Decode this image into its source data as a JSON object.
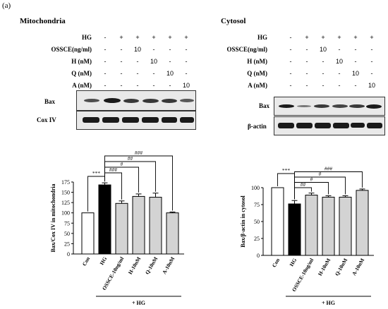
{
  "panel_label": "(a)",
  "left": {
    "title": "Mitochondria",
    "conditions": [
      {
        "label": "HG",
        "values": [
          "-",
          "+",
          "+",
          "+",
          "+",
          "+"
        ]
      },
      {
        "label": "OSSCE(ng/ml)",
        "values": [
          "-",
          "-",
          "10",
          "-",
          "-",
          "-"
        ]
      },
      {
        "label": "H (nM)",
        "values": [
          "-",
          "-",
          "-",
          "10",
          "-",
          "-"
        ]
      },
      {
        "label": "Q (nM)",
        "values": [
          "-",
          "-",
          "-",
          "-",
          "10",
          "-"
        ]
      },
      {
        "label": "A (nM)",
        "values": [
          "-",
          "-",
          "-",
          "-",
          "-",
          "10"
        ]
      }
    ],
    "blot_labels": [
      "Bax",
      "Cox IV"
    ]
  },
  "right": {
    "title": "Cytosol",
    "conditions": [
      {
        "label": "HG",
        "values": [
          "-",
          "+",
          "+",
          "+",
          "+",
          "+"
        ]
      },
      {
        "label": "OSSCE(ng/ml)",
        "values": [
          "-",
          "-",
          "10",
          "-",
          "-",
          "-"
        ]
      },
      {
        "label": "H (nM)",
        "values": [
          "-",
          "-",
          "-",
          "10",
          "-",
          "-"
        ]
      },
      {
        "label": "Q (nM)",
        "values": [
          "-",
          "-",
          "-",
          "-",
          "10",
          "-"
        ]
      },
      {
        "label": "A (nM)",
        "values": [
          "-",
          "-",
          "-",
          "-",
          "-",
          "10"
        ]
      }
    ],
    "blot_labels": [
      "Bax",
      "β-actin"
    ]
  },
  "chart_data": [
    {
      "type": "bar",
      "categories": [
        "Con",
        "HG",
        "OSSCE-10ng/ml",
        "H-10nM",
        "Q-10nM",
        "A-10nM"
      ],
      "values": [
        100,
        168,
        123,
        140,
        138,
        100
      ],
      "errors": [
        0,
        5,
        6,
        6,
        10,
        2
      ],
      "bar_colors": [
        "#ffffff",
        "#000000",
        "#d3d3d3",
        "#d3d3d3",
        "#d3d3d3",
        "#d3d3d3"
      ],
      "ylabel": "Bax/Cox IV in mitochondria",
      "ylim": [
        0,
        175
      ],
      "yticks": [
        "0",
        "25",
        "50",
        "75",
        "100",
        "125",
        "150",
        "175"
      ],
      "group_label": "+ HG",
      "significance": [
        {
          "from": 0,
          "to": 1,
          "label": "***"
        },
        {
          "from": 1,
          "to": 2,
          "label": "###"
        },
        {
          "from": 1,
          "to": 3,
          "label": "#"
        },
        {
          "from": 1,
          "to": 4,
          "label": "##"
        },
        {
          "from": 1,
          "to": 5,
          "label": "###"
        }
      ]
    },
    {
      "type": "bar",
      "categories": [
        "Con",
        "HG",
        "OSSCE-10ng/ml",
        "H-10nM",
        "Q-10nM",
        "A-10nM"
      ],
      "values": [
        100,
        76,
        89,
        86,
        86,
        96
      ],
      "errors": [
        0,
        5,
        3,
        2,
        2,
        2
      ],
      "bar_colors": [
        "#ffffff",
        "#000000",
        "#d3d3d3",
        "#d3d3d3",
        "#d3d3d3",
        "#d3d3d3"
      ],
      "ylabel": "Bax/β-actin in cytosol",
      "ylim": [
        0,
        100
      ],
      "yticks": [
        "0",
        "25",
        "50",
        "75",
        "100"
      ],
      "group_label": "+ HG",
      "significance": [
        {
          "from": 0,
          "to": 1,
          "label": "***"
        },
        {
          "from": 1,
          "to": 2,
          "label": "##"
        },
        {
          "from": 1,
          "to": 3,
          "label": "#"
        },
        {
          "from": 1,
          "to": 4,
          "label": "#"
        },
        {
          "from": 1,
          "to": 5,
          "label": "###"
        }
      ]
    }
  ]
}
